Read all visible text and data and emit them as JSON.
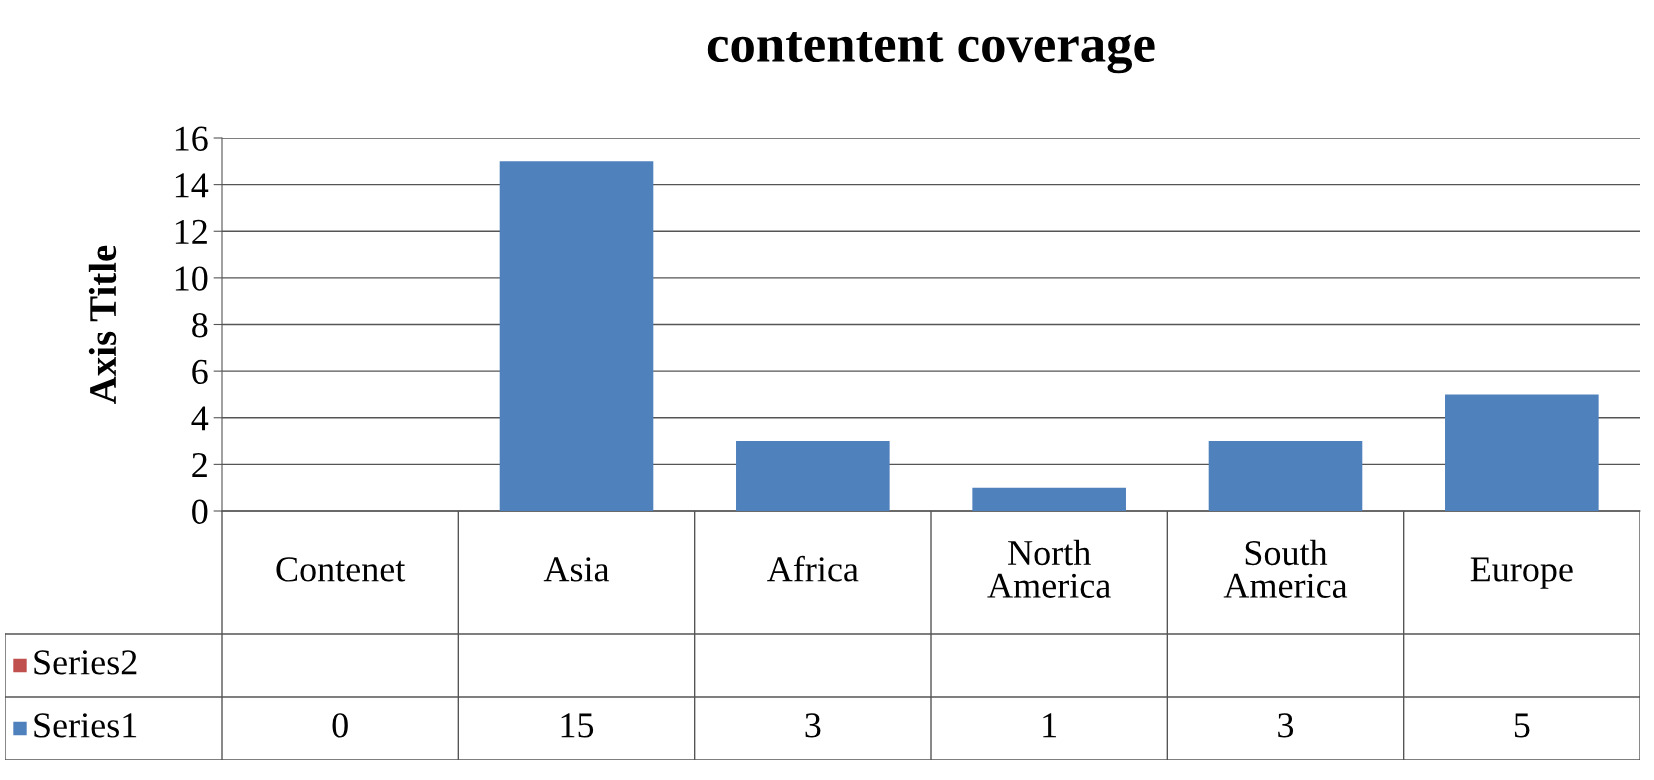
{
  "chart_data": {
    "type": "bar",
    "title": "contentent coverage",
    "ylabel": "Axis Title",
    "categories": [
      "Contenet",
      "Asia",
      "Africa",
      "North\nAmerica",
      "South\nAmerica",
      "Europe"
    ],
    "series": [
      {
        "name": "Series2",
        "color": "#c0504d",
        "values": [
          null,
          null,
          null,
          null,
          null,
          null
        ]
      },
      {
        "name": "Series1",
        "color": "#4f81bd",
        "values": [
          0,
          15,
          3,
          1,
          3,
          5
        ]
      }
    ],
    "ylim": [
      0,
      16
    ],
    "yticks": [
      0,
      2,
      4,
      6,
      8,
      10,
      12,
      14,
      16
    ],
    "grid": "y",
    "legend": "bottom",
    "data_labels": true
  }
}
